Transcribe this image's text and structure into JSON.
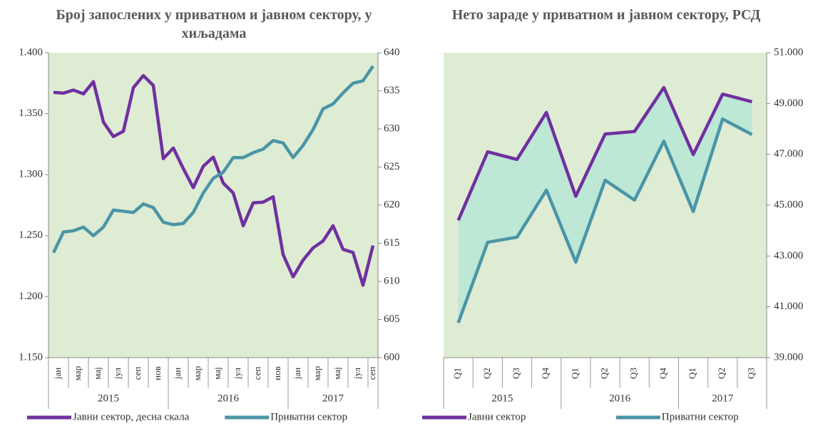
{
  "chart_data": [
    {
      "type": "line",
      "title": "Број запослених у приватном и јавном сектору, у хиљадама",
      "categories": [
        "јан",
        null,
        "мар",
        null,
        "мај",
        null,
        "јул",
        null,
        "сеп",
        null,
        "нов",
        null,
        "јан",
        null,
        "мар",
        null,
        "мај",
        null,
        "јул",
        null,
        "сеп",
        null,
        "нов",
        null,
        "јан",
        null,
        "мар",
        null,
        "мај",
        null,
        "јул",
        null,
        "сеп"
      ],
      "groups": [
        {
          "label": "2015",
          "span": 12
        },
        {
          "label": "2016",
          "span": 12
        },
        {
          "label": "2017",
          "span": 9
        }
      ],
      "series": [
        {
          "name": "Јавни сектор, десна скала",
          "color": "#7030a0",
          "axis": "y2",
          "values": [
            634.8,
            634.7,
            635.1,
            634.6,
            636.2,
            630.9,
            629.0,
            629.7,
            635.4,
            637.0,
            635.7,
            626.1,
            627.5,
            624.8,
            622.3,
            625.1,
            626.3,
            622.9,
            621.6,
            617.3,
            620.3,
            620.4,
            621.1,
            613.5,
            610.6,
            612.8,
            614.4,
            615.3,
            617.3,
            614.2,
            613.8,
            609.5,
            614.7
          ]
        },
        {
          "name": "Приватни сектор",
          "color": "#4a95a6",
          "values": [
            1236,
            1253,
            1254,
            1257,
            1250,
            1257,
            1271,
            1270,
            1269,
            1276,
            1273,
            1261,
            1259,
            1260,
            1269,
            1285,
            1297,
            1302,
            1314,
            1314,
            1318,
            1321,
            1328,
            1326,
            1314,
            1324,
            1337,
            1354,
            1358,
            1367,
            1375,
            1377,
            1389
          ]
        }
      ],
      "ylim": [
        1150,
        1400
      ],
      "yticks": [
        {
          "value": 1150,
          "label": "1.150"
        },
        {
          "value": 1200,
          "label": "1.200"
        },
        {
          "value": 1250,
          "label": "1.250"
        },
        {
          "value": 1300,
          "label": "1.300"
        },
        {
          "value": 1350,
          "label": "1.350"
        },
        {
          "value": 1400,
          "label": "1.400"
        }
      ],
      "y2lim": [
        600,
        640
      ],
      "y2ticks": [
        600,
        605,
        610,
        615,
        620,
        625,
        630,
        635,
        640
      ],
      "background": "#deecd4"
    },
    {
      "type": "line",
      "title": "Нето зараде у приватном и јавном сектору, РСД",
      "categories": [
        "Q1",
        "Q2",
        "Q3",
        "Q4",
        "Q1",
        "Q2",
        "Q3",
        "Q4",
        "Q1",
        "Q2",
        "Q3"
      ],
      "groups": [
        {
          "label": "2015",
          "span": 4
        },
        {
          "label": "2016",
          "span": 4
        },
        {
          "label": "2017",
          "span": 3
        }
      ],
      "series": [
        {
          "name": "Јавни сектор",
          "color": "#7030a0",
          "values": [
            44400,
            47100,
            46800,
            48650,
            45350,
            47800,
            47900,
            49630,
            46990,
            49370,
            49070
          ]
        },
        {
          "name": "Приватни сектор",
          "color": "#4a95a6",
          "values": [
            40370,
            43540,
            43740,
            45590,
            42760,
            45980,
            45200,
            47520,
            44750,
            48390,
            47780
          ]
        }
      ],
      "ylim": [
        39000,
        51000
      ],
      "yticks": [
        {
          "value": 39000,
          "label": "39.000"
        },
        {
          "value": 41000,
          "label": "41.000"
        },
        {
          "value": 43000,
          "label": "43.000"
        },
        {
          "value": 45000,
          "label": "45.000"
        },
        {
          "value": 47000,
          "label": "47.000"
        },
        {
          "value": 49000,
          "label": "49.000"
        },
        {
          "value": 51000,
          "label": "51.000"
        }
      ],
      "y_axis_side": "right",
      "fill_between": "#bde8d6",
      "background": "#deecd4"
    }
  ]
}
